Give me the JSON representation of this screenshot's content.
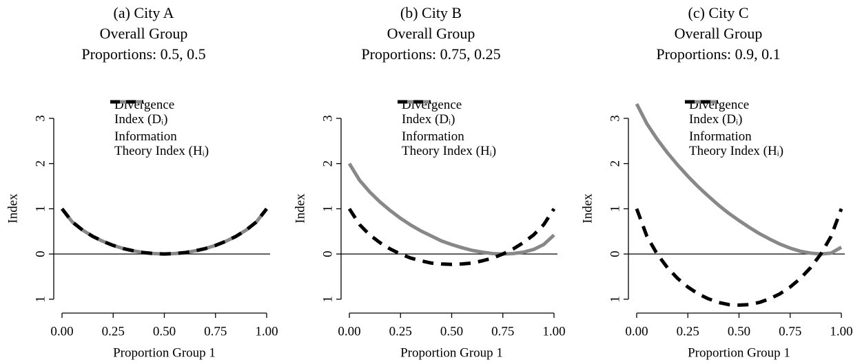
{
  "chart_data": [
    {
      "type": "line",
      "title": "(a) City A\nOverall Group\nProportions: 0.5, 0.5",
      "xlabel": "Proportion Group 1",
      "ylabel": "Index",
      "x": [
        0,
        0.05,
        0.1,
        0.15,
        0.2,
        0.25,
        0.3,
        0.35,
        0.4,
        0.45,
        0.5,
        0.55,
        0.6,
        0.65,
        0.7,
        0.75,
        0.8,
        0.85,
        0.9,
        0.95,
        1
      ],
      "series": [
        {
          "name": "Divergence\nIndex (Dᵢ)",
          "color": "#888888",
          "style": "solid",
          "values": [
            1,
            0.71,
            0.53,
            0.39,
            0.28,
            0.19,
            0.12,
            0.07,
            0.03,
            0.01,
            0,
            0.01,
            0.03,
            0.07,
            0.12,
            0.19,
            0.28,
            0.39,
            0.53,
            0.71,
            1
          ]
        },
        {
          "name": "Information\nTheory Index (Hᵢ)",
          "color": "#000000",
          "style": "dashed",
          "values": [
            1,
            0.71,
            0.53,
            0.39,
            0.28,
            0.19,
            0.12,
            0.07,
            0.03,
            0.01,
            0,
            0.01,
            0.03,
            0.07,
            0.12,
            0.19,
            0.28,
            0.39,
            0.53,
            0.71,
            1
          ]
        }
      ],
      "xlim": [
        0,
        1
      ],
      "ylim": [
        -1.2,
        3.35
      ],
      "xticks": [
        {
          "value": 0,
          "label": "0.00"
        },
        {
          "value": 0.25,
          "label": "0.25"
        },
        {
          "value": 0.5,
          "label": "0.50"
        },
        {
          "value": 0.75,
          "label": "0.75"
        },
        {
          "value": 1,
          "label": "1.00"
        }
      ],
      "yticks": [
        {
          "value": -1,
          "label": "1"
        },
        0,
        1,
        2,
        3
      ],
      "hline": 0
    },
    {
      "type": "line",
      "title": "(b) City B\nOverall Group\nProportions: 0.75, 0.25",
      "xlabel": "Proportion Group 1",
      "ylabel": "Index",
      "x": [
        0,
        0.05,
        0.1,
        0.15,
        0.2,
        0.25,
        0.3,
        0.35,
        0.4,
        0.45,
        0.5,
        0.55,
        0.6,
        0.65,
        0.7,
        0.75,
        0.8,
        0.85,
        0.9,
        0.95,
        1
      ],
      "series": [
        {
          "name": "Divergence\nIndex (Dᵢ)",
          "color": "#888888",
          "style": "solid",
          "values": [
            2,
            1.63,
            1.37,
            1.15,
            0.96,
            0.79,
            0.64,
            0.51,
            0.4,
            0.29,
            0.21,
            0.14,
            0.08,
            0.04,
            0.01,
            0,
            0.01,
            0.04,
            0.1,
            0.21,
            0.42
          ]
        },
        {
          "name": "Information\nTheory Index (Hᵢ)",
          "color": "#000000",
          "style": "dashed",
          "values": [
            1,
            0.65,
            0.42,
            0.25,
            0.11,
            0,
            -0.09,
            -0.15,
            -0.2,
            -0.22,
            -0.23,
            -0.22,
            -0.2,
            -0.15,
            -0.09,
            0,
            0.11,
            0.25,
            0.42,
            0.65,
            1
          ]
        }
      ],
      "xlim": [
        0,
        1
      ],
      "ylim": [
        -1.2,
        3.35
      ],
      "xticks": [
        {
          "value": 0,
          "label": "0.00"
        },
        {
          "value": 0.25,
          "label": "0.25"
        },
        {
          "value": 0.5,
          "label": "0.50"
        },
        {
          "value": 0.75,
          "label": "0.75"
        },
        {
          "value": 1,
          "label": "1.00"
        }
      ],
      "yticks": [
        {
          "value": -1,
          "label": "1"
        },
        0,
        1,
        2,
        3
      ],
      "hline": 0
    },
    {
      "type": "line",
      "title": "(c) City C\nOverall Group\nProportions: 0.9, 0.1",
      "xlabel": "Proportion Group 1",
      "ylabel": "Index",
      "x": [
        0,
        0.05,
        0.1,
        0.15,
        0.2,
        0.25,
        0.3,
        0.35,
        0.4,
        0.45,
        0.5,
        0.55,
        0.6,
        0.65,
        0.7,
        0.75,
        0.8,
        0.85,
        0.9,
        0.95,
        1
      ],
      "series": [
        {
          "name": "Divergence\nIndex (Dᵢ)",
          "color": "#888888",
          "style": "solid",
          "values": [
            3.32,
            2.88,
            2.54,
            2.24,
            1.97,
            1.72,
            1.49,
            1.28,
            1.08,
            0.9,
            0.74,
            0.59,
            0.45,
            0.33,
            0.22,
            0.13,
            0.06,
            0.02,
            0,
            0.02,
            0.15
          ]
        },
        {
          "name": "Information\nTheory Index (Hᵢ)",
          "color": "#000000",
          "style": "dashed",
          "values": [
            1,
            0.39,
            0,
            -0.3,
            -0.54,
            -0.73,
            -0.88,
            -0.99,
            -1.07,
            -1.12,
            -1.13,
            -1.12,
            -1.07,
            -0.99,
            -0.88,
            -0.73,
            -0.54,
            -0.3,
            0,
            0.39,
            1
          ]
        }
      ],
      "xlim": [
        0,
        1
      ],
      "ylim": [
        -1.2,
        3.35
      ],
      "xticks": [
        {
          "value": 0,
          "label": "0.00"
        },
        {
          "value": 0.25,
          "label": "0.25"
        },
        {
          "value": 0.5,
          "label": "0.50"
        },
        {
          "value": 0.75,
          "label": "0.75"
        },
        {
          "value": 1,
          "label": "1.00"
        }
      ],
      "yticks": [
        {
          "value": -1,
          "label": "1"
        },
        0,
        1,
        2,
        3
      ],
      "hline": 0
    }
  ]
}
